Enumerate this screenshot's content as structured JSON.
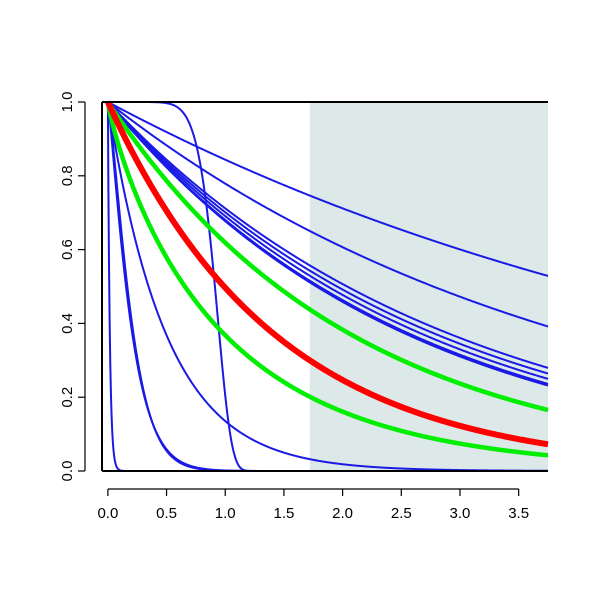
{
  "chart_data": {
    "type": "line",
    "title": "",
    "xlabel": "",
    "ylabel": "",
    "xlim": [
      -0.05,
      3.75
    ],
    "ylim": [
      0,
      1
    ],
    "x_ticks": [
      "0.0",
      "0.5",
      "1.0",
      "1.5",
      "2.0",
      "2.5",
      "3.0",
      "3.5"
    ],
    "y_ticks": [
      "0.0",
      "0.2",
      "0.4",
      "0.6",
      "0.8",
      "1.0"
    ],
    "shaded_region": {
      "x_from": 1.72,
      "x_to": 3.75,
      "y_from": 0,
      "y_to": 1,
      "color": "#dde9e9"
    },
    "grid": false,
    "legend": "none",
    "colors": {
      "blue": "#1a1ae6",
      "red": "#ff0000",
      "green": "#00ee00"
    },
    "series": [
      {
        "color": "blue",
        "kind": "exp",
        "rate": 0.17
      },
      {
        "color": "blue",
        "kind": "exp",
        "rate": 0.25
      },
      {
        "color": "blue",
        "kind": "exp",
        "rate": 0.34
      },
      {
        "color": "blue",
        "kind": "exp",
        "rate": 0.355
      },
      {
        "color": "blue",
        "kind": "exp",
        "rate": 0.37
      },
      {
        "color": "blue",
        "kind": "exp",
        "rate": 0.385
      },
      {
        "color": "blue",
        "kind": "exp",
        "rate": 0.39
      },
      {
        "color": "blue",
        "kind": "weibull",
        "scale": 0.95,
        "shape": 9
      },
      {
        "color": "blue",
        "kind": "exp",
        "rate": 2.0
      },
      {
        "color": "blue",
        "kind": "weibull",
        "scale": 0.21,
        "shape": 1.2
      },
      {
        "color": "blue",
        "kind": "weibull",
        "scale": 0.22,
        "shape": 1.3
      },
      {
        "color": "blue",
        "kind": "exp",
        "rate": 60
      },
      {
        "color": "green",
        "kind": "exp",
        "rate": 0.48
      },
      {
        "color": "green",
        "kind": "exp",
        "rate": 1.0,
        "power": 0.87
      },
      {
        "color": "red",
        "kind": "exp",
        "rate": 0.7
      }
    ]
  }
}
